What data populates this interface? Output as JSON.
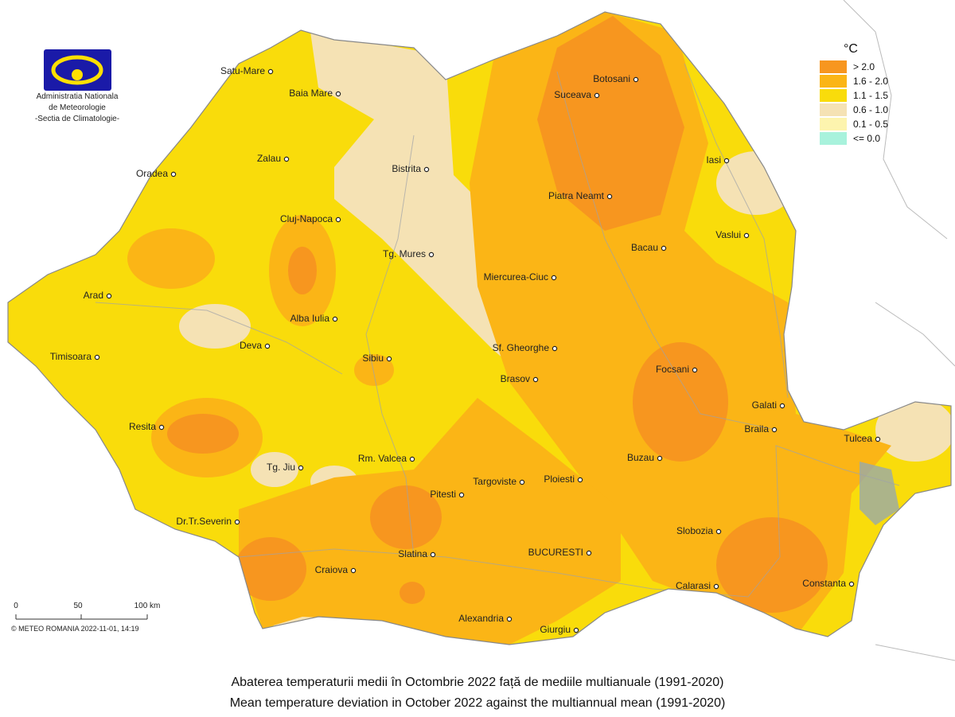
{
  "logo": {
    "lines": [
      "Administratia Nationala",
      "de Meteorologie",
      "-Sectia de Climatologie-"
    ]
  },
  "legend": {
    "unit": "°C",
    "items": [
      {
        "label": "> 2.0",
        "color": "#f7961f"
      },
      {
        "label": "1.6 - 2.0",
        "color": "#fbb516"
      },
      {
        "label": "1.1 - 1.5",
        "color": "#f9dc0b"
      },
      {
        "label": "0.6 - 1.0",
        "color": "#f5e2b4"
      },
      {
        "label": "0.1 - 0.5",
        "color": "#fdf4ae"
      },
      {
        "label": "<= 0.0",
        "color": "#a8f2dc"
      }
    ]
  },
  "cities": [
    "Satu-Mare",
    "Baia Mare",
    "Oradea",
    "Zalau",
    "Bistrita",
    "Cluj-Napoca",
    "Tg. Mures",
    "Arad",
    "Alba Iulia",
    "Deva",
    "Timisoara",
    "Sibiu",
    "Miercurea-Ciuc",
    "Sf. Gheorghe",
    "Brasov",
    "Resita",
    "Tg. Jiu",
    "Rm. Valcea",
    "Targoviste",
    "Pitesti",
    "Ploiesti",
    "Dr.Tr.Severin",
    "Slatina",
    "Craiova",
    "BUCURESTI",
    "Alexandria",
    "Giurgiu",
    "Botosani",
    "Suceava",
    "Iasi",
    "Piatra Neamt",
    "Bacau",
    "Vaslui",
    "Focsani",
    "Galati",
    "Braila",
    "Tulcea",
    "Buzau",
    "Slobozia",
    "Calarasi",
    "Constanta"
  ],
  "scale": {
    "labels": [
      "0",
      "50",
      "100 km"
    ]
  },
  "credit": "© METEO ROMANIA 2022-11-01, 14:19",
  "caption": [
    "Abaterea temperaturii medii în  Octombrie 2022  față de mediile multianuale (1991-2020)",
    "Mean temperature deviation in  October 2022  against the multiannual mean (1991-2020)"
  ]
}
